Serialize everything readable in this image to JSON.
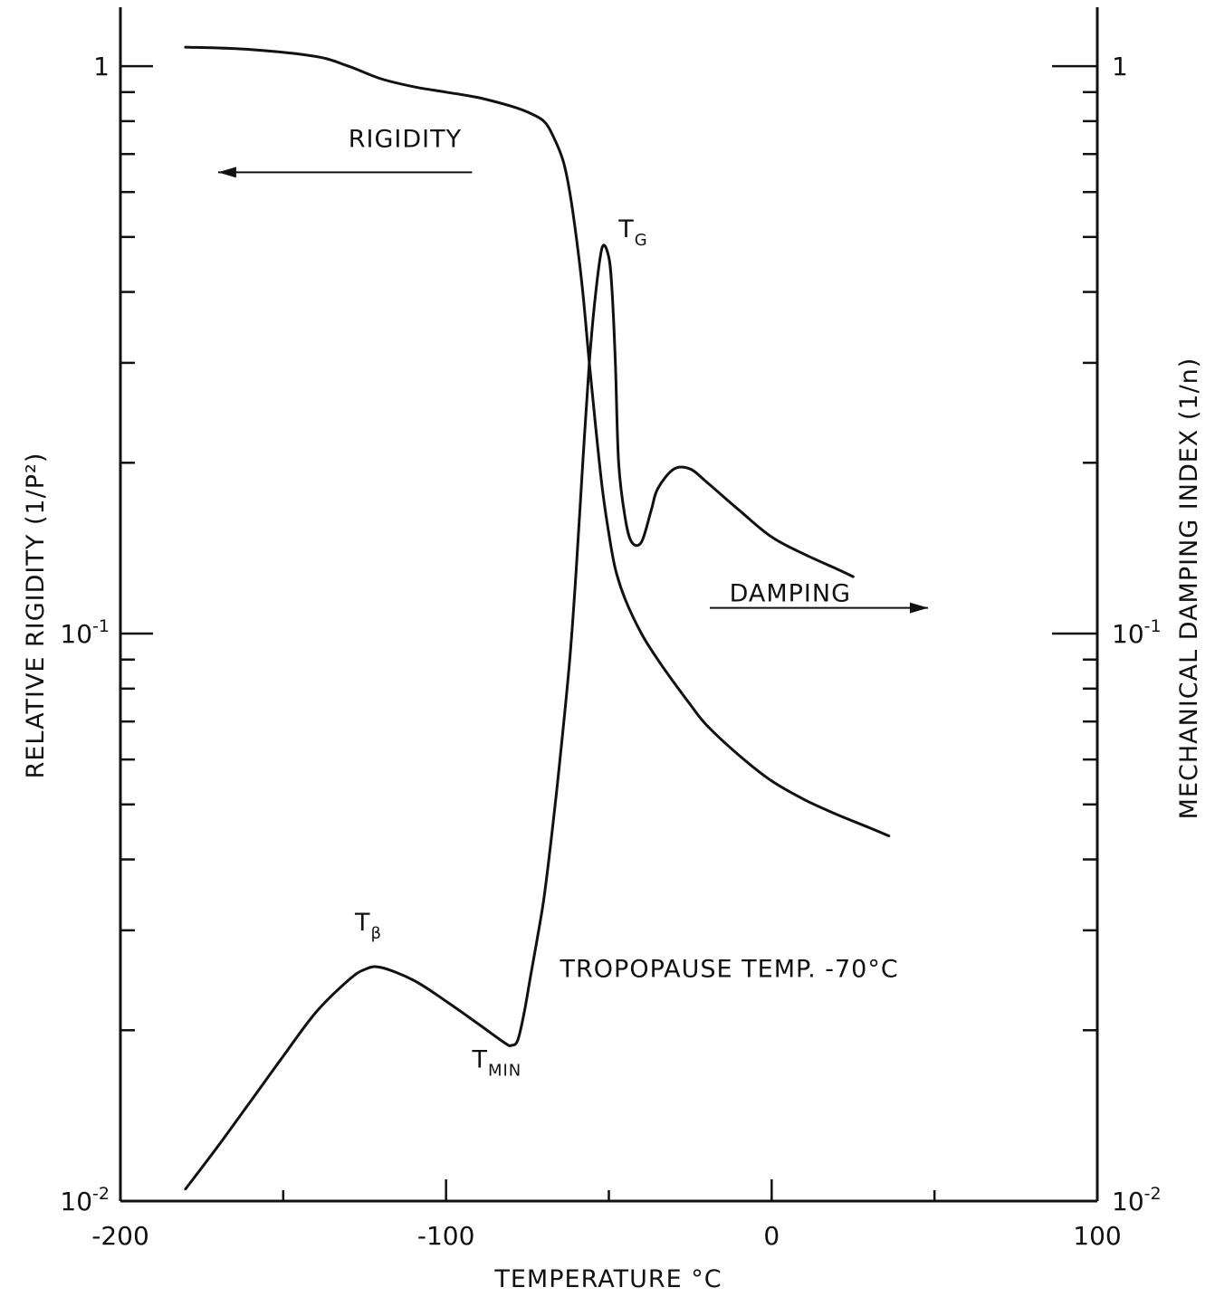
{
  "chart_data": {
    "type": "line",
    "title": "",
    "xlabel": "TEMPERATURE °C",
    "ylabel_left": "RELATIVE RIGIDITY (1/P²)",
    "ylabel_right": "MECHANICAL DAMPING INDEX (1/n)",
    "xlim": [
      -200,
      100
    ],
    "ylim": [
      0.01,
      1.2
    ],
    "yscale": "log",
    "grid": false,
    "x_ticks": [
      -200,
      -100,
      0,
      100
    ],
    "x_tick_labels": [
      "-200",
      "-100",
      "0",
      "100"
    ],
    "x_minor_ticks": [
      -150,
      -50,
      50
    ],
    "y_major_ticks": [
      0.01,
      0.1,
      1
    ],
    "y_minor_ticks": [
      0.02,
      0.03,
      0.04,
      0.05,
      0.06,
      0.07,
      0.08,
      0.09,
      0.2,
      0.3,
      0.4,
      0.5,
      0.6,
      0.7,
      0.8,
      0.9
    ],
    "y_tick_labels_left": [
      {
        "value": 1,
        "base": "1",
        "exp": ""
      },
      {
        "value": 0.1,
        "base": "10",
        "exp": "-1"
      },
      {
        "value": 0.01,
        "base": "10",
        "exp": "-2"
      }
    ],
    "y_tick_labels_right": [
      {
        "value": 1,
        "base": "1",
        "exp": ""
      },
      {
        "value": 0.1,
        "base": "10",
        "exp": "-1"
      },
      {
        "value": 0.01,
        "base": "10",
        "exp": "-2"
      }
    ],
    "series": [
      {
        "axis": "left",
        "x": [
          -180,
          -160,
          -140,
          -130,
          -120,
          -110,
          -100,
          -90,
          -80,
          -75,
          -70,
          -67,
          -64,
          -62,
          -60,
          -58,
          -56,
          -54,
          -52,
          -50,
          -48,
          -45,
          -40,
          -35,
          -30,
          -25,
          -20,
          -10,
          0,
          10,
          20,
          30,
          36
        ],
        "y": [
          1.08,
          1.07,
          1.04,
          1.0,
          0.95,
          0.92,
          0.9,
          0.88,
          0.85,
          0.83,
          0.8,
          0.75,
          0.68,
          0.6,
          0.5,
          0.4,
          0.3,
          0.23,
          0.18,
          0.15,
          0.13,
          0.115,
          0.1,
          0.09,
          0.082,
          0.075,
          0.069,
          0.061,
          0.055,
          0.051,
          0.048,
          0.0455,
          0.044
        ]
      },
      {
        "axis": "right",
        "x": [
          -180,
          -170,
          -160,
          -150,
          -140,
          -130,
          -125,
          -120,
          -110,
          -100,
          -90,
          -82,
          -80,
          -78,
          -76,
          -74,
          -72,
          -70,
          -68,
          -65,
          -62,
          -60,
          -58,
          -56,
          -54,
          -52,
          -50,
          -49,
          -48,
          -47,
          -45,
          -43,
          -40,
          -37,
          -35,
          -30,
          -25,
          -20,
          -10,
          0,
          10,
          20,
          25
        ],
        "y": [
          0.0105,
          0.0125,
          0.015,
          0.018,
          0.0215,
          0.0245,
          0.0256,
          0.0258,
          0.0245,
          0.0225,
          0.0205,
          0.019,
          0.0188,
          0.0192,
          0.0215,
          0.025,
          0.029,
          0.034,
          0.042,
          0.06,
          0.09,
          0.13,
          0.2,
          0.3,
          0.4,
          0.48,
          0.46,
          0.4,
          0.3,
          0.2,
          0.16,
          0.145,
          0.145,
          0.165,
          0.18,
          0.195,
          0.195,
          0.185,
          0.165,
          0.148,
          0.138,
          0.13,
          0.126
        ]
      }
    ],
    "annotations": [
      {
        "id": "rigidity",
        "text": "RIGIDITY",
        "sub": "",
        "x": -130,
        "y": 0.72,
        "arrow_from": [
          -92,
          0.65
        ],
        "arrow_to": [
          -170,
          0.65
        ]
      },
      {
        "id": "damping",
        "text": "DAMPING",
        "sub": "",
        "x": -13,
        "y": 0.114,
        "arrow_from": [
          -19,
          0.111
        ],
        "arrow_to": [
          48,
          0.111
        ]
      },
      {
        "id": "tg",
        "text": "T",
        "sub": "G",
        "x": -47,
        "y": 0.5
      },
      {
        "id": "tbeta",
        "text": "T",
        "sub": "β",
        "x": -128,
        "y": 0.03
      },
      {
        "id": "tmin",
        "text": "T",
        "sub": "MIN",
        "x": -92,
        "y": 0.0172
      },
      {
        "id": "tropopause",
        "text": "TROPOPAUSE  TEMP. -70°C",
        "sub": "",
        "x": -65,
        "y": 0.0248
      }
    ]
  }
}
